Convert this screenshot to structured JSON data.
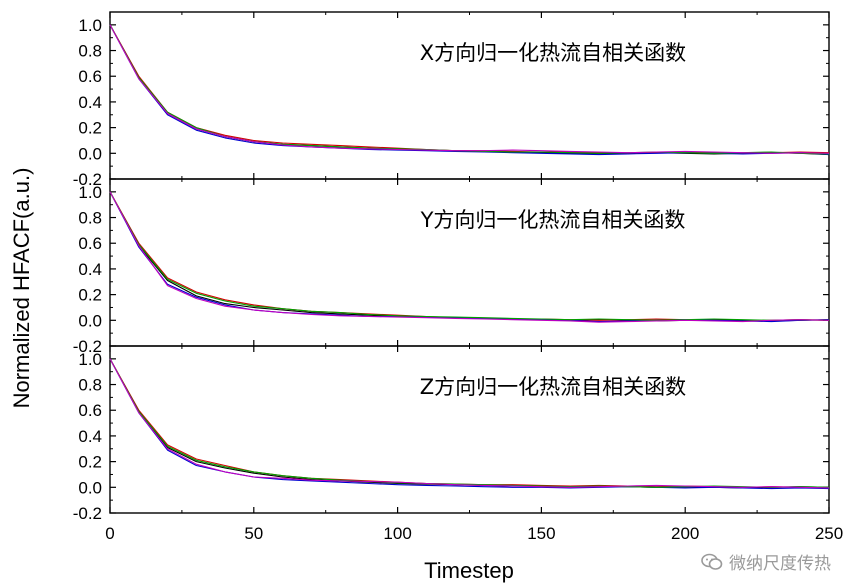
{
  "chart_data": {
    "type": "line",
    "xlabel": "Timestep",
    "ylabel": "Normalized HFACF(a.u.)",
    "xlim": [
      0,
      250
    ],
    "ylim": [
      -0.2,
      1.1
    ],
    "x_ticks": [
      0,
      50,
      100,
      150,
      200,
      250
    ],
    "y_ticks": [
      -0.2,
      0.0,
      0.2,
      0.4,
      0.6,
      0.8,
      1.0
    ],
    "x": [
      0,
      10,
      20,
      30,
      40,
      50,
      60,
      70,
      80,
      90,
      100,
      110,
      120,
      130,
      140,
      150,
      160,
      170,
      180,
      190,
      200,
      210,
      220,
      230,
      240,
      250
    ],
    "grid": false,
    "legend": "none",
    "series_colors": [
      "#000000",
      "#d10000",
      "#0000d0",
      "#00a000",
      "#c000c0",
      "#008080",
      "#606000",
      "#000080",
      "#ff00ff",
      "#3050ff"
    ],
    "panels": [
      {
        "label": "X方向归一化热流自相关函数",
        "series": [
          {
            "values": [
              1.0,
              0.59,
              0.31,
              0.19,
              0.13,
              0.09,
              0.07,
              0.06,
              0.05,
              0.04,
              0.03,
              0.025,
              0.02,
              0.015,
              0.01,
              0.005,
              0.0,
              -0.005,
              0.0,
              0.005,
              0.0,
              -0.005,
              0.0,
              0.005,
              0.0,
              -0.01
            ]
          },
          {
            "values": [
              1.0,
              0.6,
              0.32,
              0.2,
              0.14,
              0.1,
              0.08,
              0.07,
              0.06,
              0.05,
              0.04,
              0.03,
              0.02,
              0.02,
              0.015,
              0.01,
              0.01,
              0.005,
              0.0,
              0.005,
              0.01,
              0.005,
              0.0,
              0.005,
              0.01,
              0.005
            ]
          },
          {
            "values": [
              1.0,
              0.58,
              0.3,
              0.18,
              0.12,
              0.08,
              0.06,
              0.05,
              0.04,
              0.03,
              0.025,
              0.02,
              0.015,
              0.01,
              0.005,
              0.0,
              -0.005,
              -0.01,
              -0.005,
              0.0,
              0.005,
              0.0,
              -0.005,
              0.0,
              0.005,
              -0.01
            ]
          },
          {
            "values": [
              1.0,
              0.59,
              0.32,
              0.2,
              0.13,
              0.09,
              0.07,
              0.06,
              0.05,
              0.04,
              0.035,
              0.03,
              0.02,
              0.015,
              0.01,
              0.01,
              0.005,
              0.0,
              0.005,
              0.01,
              0.005,
              0.0,
              0.005,
              0.01,
              0.0,
              -0.005
            ]
          },
          {
            "values": [
              1.0,
              0.58,
              0.31,
              0.19,
              0.13,
              0.09,
              0.065,
              0.05,
              0.04,
              0.035,
              0.03,
              0.025,
              0.02,
              0.02,
              0.025,
              0.02,
              0.015,
              0.01,
              0.005,
              0.01,
              0.015,
              0.01,
              0.005,
              0.0,
              0.005,
              0.0
            ]
          }
        ]
      },
      {
        "label": "Y方向归一化热流自相关函数",
        "series": [
          {
            "values": [
              1.0,
              0.58,
              0.31,
              0.19,
              0.13,
              0.1,
              0.08,
              0.06,
              0.05,
              0.04,
              0.03,
              0.025,
              0.02,
              0.015,
              0.01,
              0.005,
              0.0,
              0.005,
              0.0,
              -0.005,
              0.0,
              0.005,
              0.0,
              -0.005,
              0.0,
              0.005
            ]
          },
          {
            "values": [
              1.0,
              0.6,
              0.33,
              0.22,
              0.16,
              0.12,
              0.09,
              0.07,
              0.06,
              0.05,
              0.04,
              0.03,
              0.02,
              0.015,
              0.01,
              0.01,
              0.005,
              0.0,
              0.005,
              0.01,
              0.005,
              0.0,
              -0.005,
              0.0,
              0.005,
              0.0
            ]
          },
          {
            "values": [
              1.0,
              0.57,
              0.28,
              0.18,
              0.12,
              0.08,
              0.06,
              0.05,
              0.04,
              0.03,
              0.03,
              0.025,
              0.02,
              0.015,
              0.01,
              0.005,
              0.0,
              -0.01,
              -0.005,
              0.0,
              0.005,
              0.0,
              -0.005,
              -0.01,
              0.0,
              0.005
            ]
          },
          {
            "values": [
              1.0,
              0.59,
              0.32,
              0.21,
              0.15,
              0.11,
              0.09,
              0.07,
              0.06,
              0.045,
              0.035,
              0.03,
              0.025,
              0.02,
              0.015,
              0.01,
              0.005,
              0.01,
              0.005,
              0.0,
              0.005,
              0.01,
              0.005,
              0.0,
              0.005,
              0.0
            ]
          },
          {
            "values": [
              1.0,
              0.58,
              0.27,
              0.17,
              0.11,
              0.08,
              0.06,
              0.045,
              0.035,
              0.03,
              0.025,
              0.02,
              0.015,
              0.01,
              0.005,
              0.0,
              -0.005,
              -0.015,
              -0.01,
              -0.005,
              0.0,
              -0.005,
              -0.01,
              0.0,
              0.005,
              0.0
            ]
          }
        ]
      },
      {
        "label": "Z方向归一化热流自相关函数",
        "series": [
          {
            "values": [
              1.0,
              0.59,
              0.31,
              0.2,
              0.15,
              0.11,
              0.08,
              0.06,
              0.05,
              0.04,
              0.03,
              0.025,
              0.02,
              0.015,
              0.01,
              0.01,
              0.005,
              0.01,
              0.005,
              0.0,
              0.005,
              0.0,
              -0.005,
              0.0,
              0.005,
              0.0
            ]
          },
          {
            "values": [
              1.0,
              0.6,
              0.33,
              0.22,
              0.17,
              0.12,
              0.09,
              0.07,
              0.06,
              0.05,
              0.04,
              0.03,
              0.025,
              0.02,
              0.02,
              0.015,
              0.01,
              0.015,
              0.01,
              0.005,
              0.01,
              0.005,
              0.0,
              0.005,
              0.0,
              -0.005
            ]
          },
          {
            "values": [
              1.0,
              0.58,
              0.29,
              0.17,
              0.12,
              0.08,
              0.06,
              0.05,
              0.04,
              0.03,
              0.02,
              0.015,
              0.01,
              0.005,
              0.0,
              0.0,
              -0.005,
              0.0,
              0.005,
              0.0,
              -0.005,
              0.0,
              -0.005,
              -0.01,
              -0.005,
              -0.01
            ]
          },
          {
            "values": [
              1.0,
              0.59,
              0.32,
              0.21,
              0.16,
              0.12,
              0.09,
              0.07,
              0.055,
              0.045,
              0.035,
              0.03,
              0.025,
              0.02,
              0.015,
              0.01,
              0.005,
              0.01,
              0.005,
              0.0,
              0.005,
              0.01,
              0.005,
              0.0,
              0.005,
              0.0
            ]
          },
          {
            "values": [
              1.0,
              0.58,
              0.3,
              0.18,
              0.12,
              0.08,
              0.07,
              0.055,
              0.05,
              0.045,
              0.04,
              0.03,
              0.02,
              0.015,
              0.01,
              0.005,
              0.0,
              0.005,
              0.01,
              0.015,
              0.01,
              0.005,
              0.0,
              0.005,
              0.0,
              -0.005
            ]
          }
        ]
      }
    ]
  },
  "watermark": {
    "text": "微纳尺度传热",
    "icon": "wechat-icon"
  }
}
